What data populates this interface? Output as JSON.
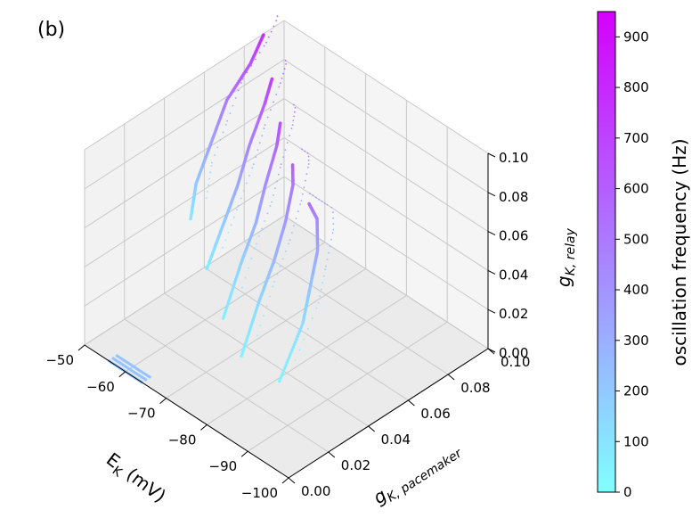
{
  "panel_label": "(b)",
  "chart_data": {
    "type": "scatter",
    "projection": "3d",
    "title": "",
    "axes": {
      "x": {
        "label": "E_K (mV)",
        "label_main": "E",
        "label_sub": "K",
        "label_tail": " (mV)",
        "range": [
          -100,
          -50
        ],
        "ticks": [
          "−100",
          "−90",
          "−80",
          "−70",
          "−60",
          "−50"
        ]
      },
      "y": {
        "label": "g_K,pacemaker",
        "label_main": "g",
        "label_sub": "K, pacemaker",
        "range": [
          0.0,
          0.1
        ],
        "ticks": [
          "0.00",
          "0.02",
          "0.04",
          "0.06",
          "0.08",
          "0.10"
        ]
      },
      "z": {
        "label": "g_K,relay",
        "label_main": "g",
        "label_sub": "K, relay",
        "range": [
          0.0,
          0.1
        ],
        "ticks": [
          "0.00",
          "0.02",
          "0.04",
          "0.06",
          "0.08",
          "0.10"
        ]
      }
    },
    "grid": true,
    "colorbar": {
      "label": "oscillation frequency (Hz)",
      "range": [
        0,
        950
      ],
      "ticks": [
        "0",
        "100",
        "200",
        "300",
        "400",
        "500",
        "600",
        "700",
        "800",
        "900"
      ],
      "colormap": "cool",
      "color_low": "#80ffff",
      "color_high": "#d400ff",
      "position": "right"
    },
    "layers": [
      {
        "g_relay": 0.02,
        "curve": [
          [
            -88,
            0.02
          ],
          [
            -80,
            0.048
          ],
          [
            -74,
            0.064
          ],
          [
            -68,
            0.08
          ],
          [
            -62,
            0.092
          ],
          [
            -58,
            0.096
          ]
        ],
        "freq": [
          50,
          120,
          220,
          330,
          440,
          530
        ]
      },
      {
        "g_relay": 0.04,
        "curve": [
          [
            -86,
            0.005
          ],
          [
            -78,
            0.03
          ],
          [
            -72,
            0.05
          ],
          [
            -66,
            0.068
          ],
          [
            -60,
            0.084
          ],
          [
            -56,
            0.092
          ]
        ],
        "freq": [
          50,
          140,
          260,
          380,
          500,
          600
        ]
      },
      {
        "g_relay": 0.06,
        "curve": [
          [
            -84,
            0.0
          ],
          [
            -76,
            0.025
          ],
          [
            -70,
            0.045
          ],
          [
            -64,
            0.062
          ],
          [
            -58,
            0.08
          ],
          [
            -54,
            0.09
          ]
        ],
        "freq": [
          60,
          160,
          290,
          420,
          560,
          660
        ]
      },
      {
        "g_relay": 0.08,
        "curve": [
          [
            -80,
            0.0
          ],
          [
            -74,
            0.02
          ],
          [
            -68,
            0.04
          ],
          [
            -62,
            0.058
          ],
          [
            -56,
            0.078
          ],
          [
            -52,
            0.09
          ]
        ],
        "freq": [
          70,
          180,
          320,
          460,
          600,
          720
        ]
      },
      {
        "g_relay": 0.1,
        "curve": [
          [
            -76,
            0.0
          ],
          [
            -70,
            0.015
          ],
          [
            -64,
            0.035
          ],
          [
            -58,
            0.055
          ],
          [
            -54,
            0.075
          ],
          [
            -50,
            0.09
          ]
        ],
        "freq": [
          80,
          200,
          350,
          500,
          650,
          780
        ]
      }
    ],
    "base_band": {
      "g_relay": 0.0,
      "x_range": [
        -64,
        -56
      ],
      "g_pacemaker": 0.0,
      "freq": 220
    }
  }
}
